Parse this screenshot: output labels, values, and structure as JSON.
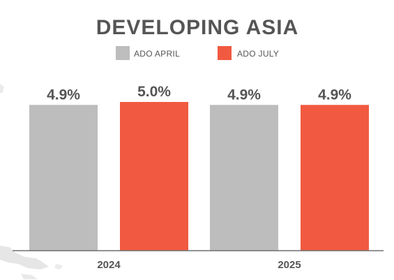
{
  "colors": {
    "text": "#555555",
    "baseline": "#6e6e6e",
    "background": "#ffffff",
    "decor": "#e6e6e6"
  },
  "chart_data": {
    "type": "bar",
    "title": "DEVELOPING ASIA",
    "xlabel": "",
    "ylabel": "",
    "categories": [
      "2024",
      "2025"
    ],
    "series": [
      {
        "name": "ADO APRIL",
        "color": "#bdbdbd",
        "values": [
          4.9,
          4.9
        ],
        "labels": [
          "4.9%",
          "4.9%"
        ]
      },
      {
        "name": "ADO JULY",
        "color": "#f15a40",
        "values": [
          5.0,
          4.9
        ],
        "labels": [
          "5.0%",
          "4.9%"
        ]
      }
    ],
    "ylim": [
      0,
      5.0
    ],
    "grid": false,
    "legend": "top-center"
  }
}
